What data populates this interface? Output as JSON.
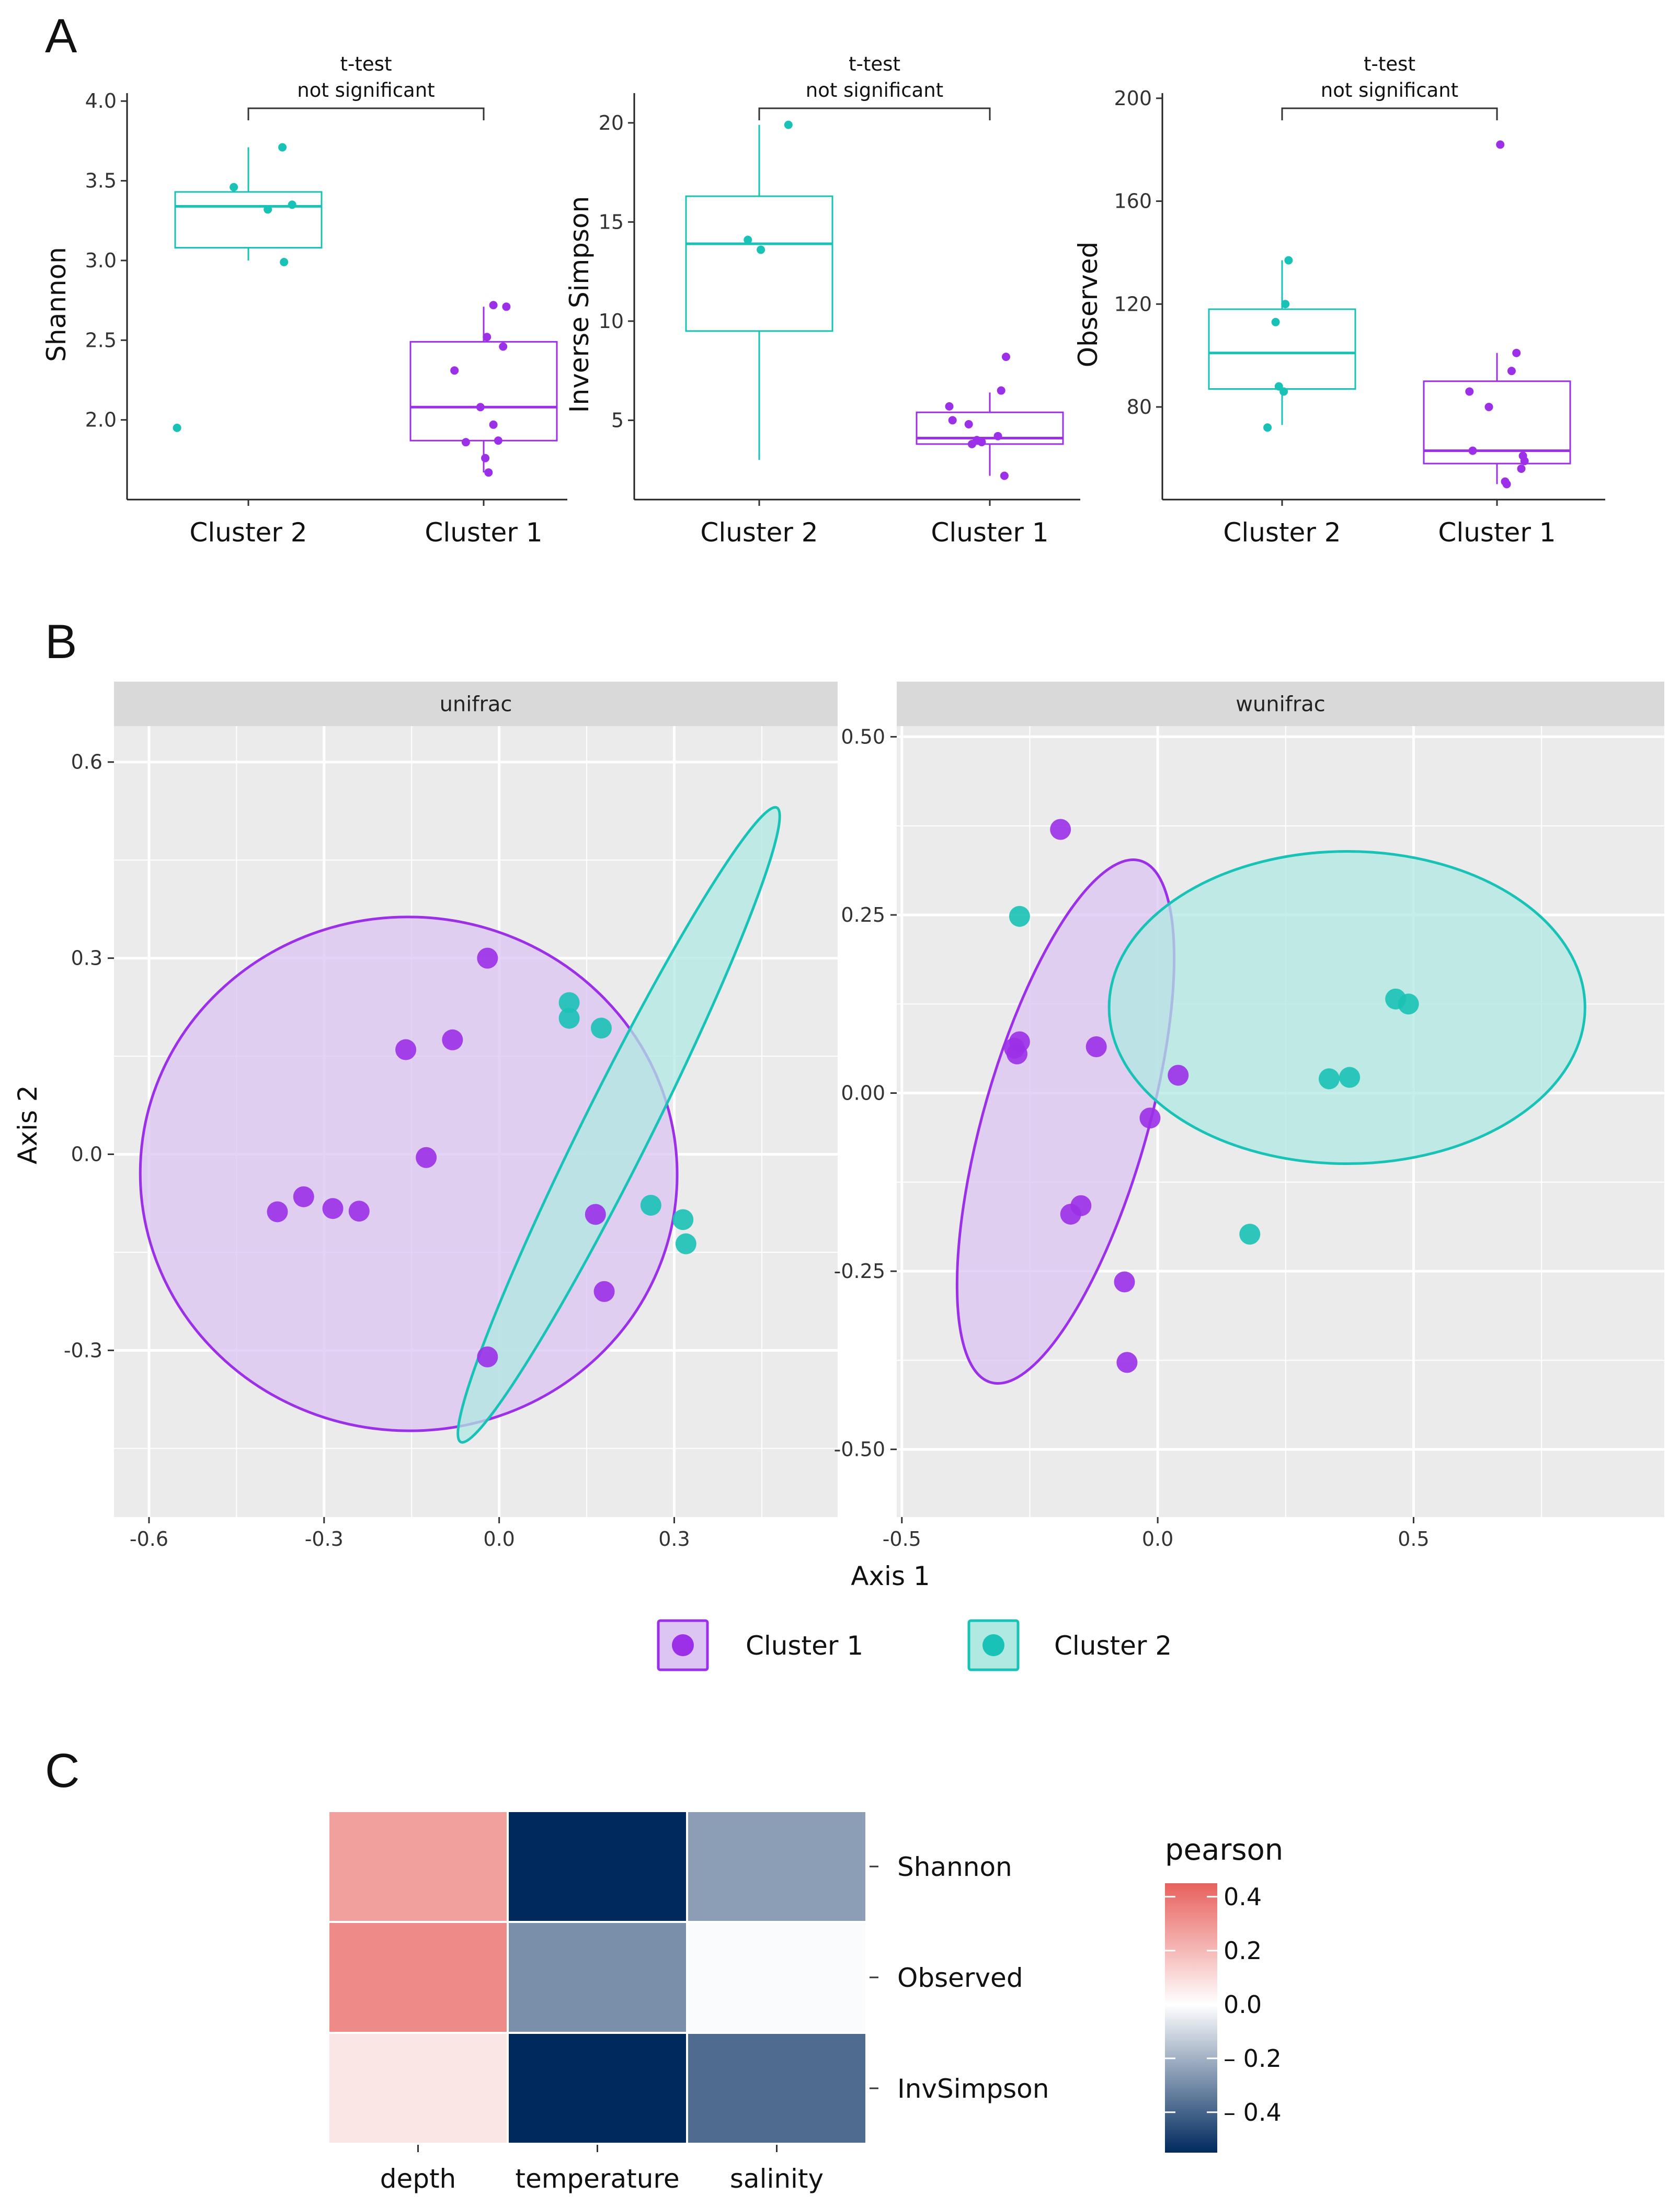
{
  "panels": {
    "a": "A",
    "b": "B",
    "c": "C"
  },
  "colors": {
    "cluster1": "#9b30e8",
    "cluster2": "#19c2b6",
    "cluster1_fill": "#dcc4f3",
    "cluster2_fill": "#b0e8e2",
    "overlap_point": "#5f74d6",
    "panel_bg": "#ebebeb",
    "strip_bg": "#d9d9d9",
    "grid": "#ffffff",
    "heat_low": "#002a5e",
    "heat_mid": "#ffffff",
    "heat_high": "#e8615d"
  },
  "chart_data": [
    {
      "id": "shannon",
      "type": "box",
      "ylabel": "Shannon",
      "categories": [
        "Cluster 2",
        "Cluster 1"
      ],
      "ylim": [
        1.5,
        4.05
      ],
      "yticks": [
        2.0,
        2.5,
        3.0,
        3.5,
        4.0
      ],
      "ytick_labels": [
        "2.0",
        "2.5",
        "3.0",
        "3.5",
        "4.0"
      ],
      "significance": {
        "test": "t-test",
        "result": "not significant"
      },
      "boxes": [
        {
          "category": "Cluster 2",
          "color": "cluster2",
          "q1": 3.08,
          "median": 3.34,
          "q3": 3.43,
          "wmin": 3.0,
          "wmax": 3.71
        },
        {
          "category": "Cluster 1",
          "color": "cluster1",
          "q1": 1.87,
          "median": 2.08,
          "q3": 2.49,
          "wmin": 1.67,
          "wmax": 2.71
        }
      ],
      "points": [
        {
          "category": "Cluster 2",
          "jitter": -0.09,
          "y": 3.46
        },
        {
          "category": "Cluster 2",
          "jitter": 0.21,
          "y": 3.71
        },
        {
          "category": "Cluster 2",
          "jitter": 0.12,
          "y": 3.32
        },
        {
          "category": "Cluster 2",
          "jitter": 0.27,
          "y": 3.35
        },
        {
          "category": "Cluster 2",
          "jitter": 0.22,
          "y": 2.99
        },
        {
          "category": "Cluster 2",
          "jitter": -0.44,
          "y": 1.95
        },
        {
          "category": "Cluster 1",
          "jitter": -0.18,
          "y": 2.31
        },
        {
          "category": "Cluster 1",
          "jitter": -0.11,
          "y": 1.86
        },
        {
          "category": "Cluster 1",
          "jitter": 0.01,
          "y": 1.76
        },
        {
          "category": "Cluster 1",
          "jitter": 0.03,
          "y": 1.67
        },
        {
          "category": "Cluster 1",
          "jitter": -0.02,
          "y": 2.08
        },
        {
          "category": "Cluster 1",
          "jitter": 0.02,
          "y": 2.52
        },
        {
          "category": "Cluster 1",
          "jitter": 0.06,
          "y": 2.72
        },
        {
          "category": "Cluster 1",
          "jitter": 0.14,
          "y": 2.71
        },
        {
          "category": "Cluster 1",
          "jitter": 0.12,
          "y": 2.46
        },
        {
          "category": "Cluster 1",
          "jitter": 0.06,
          "y": 1.97
        },
        {
          "category": "Cluster 1",
          "jitter": 0.09,
          "y": 1.87
        }
      ]
    },
    {
      "id": "invsimpson",
      "type": "box",
      "ylabel": "Inverse Simpson",
      "categories": [
        "Cluster 2",
        "Cluster 1"
      ],
      "ylim": [
        1.0,
        21.5
      ],
      "yticks": [
        5,
        10,
        15,
        20
      ],
      "ytick_labels": [
        "5",
        "10",
        "15",
        "20"
      ],
      "significance": {
        "test": "t-test",
        "result": "not significant"
      },
      "boxes": [
        {
          "category": "Cluster 2",
          "color": "cluster2",
          "q1": 9.5,
          "median": 13.9,
          "q3": 16.3,
          "wmin": 3.0,
          "wmax": 19.9
        },
        {
          "category": "Cluster 1",
          "color": "cluster1",
          "q1": 3.8,
          "median": 4.1,
          "q3": 5.4,
          "wmin": 2.2,
          "wmax": 6.4
        }
      ],
      "points": [
        {
          "category": "Cluster 2",
          "jitter": -0.07,
          "y": 14.1
        },
        {
          "category": "Cluster 2",
          "jitter": 0.01,
          "y": 13.6
        },
        {
          "category": "Cluster 2",
          "jitter": 0.18,
          "y": 19.9
        },
        {
          "category": "Cluster 1",
          "jitter": -0.25,
          "y": 5.7
        },
        {
          "category": "Cluster 1",
          "jitter": -0.23,
          "y": 5.0
        },
        {
          "category": "Cluster 1",
          "jitter": -0.13,
          "y": 4.8
        },
        {
          "category": "Cluster 1",
          "jitter": -0.11,
          "y": 3.8
        },
        {
          "category": "Cluster 1",
          "jitter": -0.08,
          "y": 4.0
        },
        {
          "category": "Cluster 1",
          "jitter": -0.05,
          "y": 3.9
        },
        {
          "category": "Cluster 1",
          "jitter": 0.05,
          "y": 4.2
        },
        {
          "category": "Cluster 1",
          "jitter": 0.07,
          "y": 6.5
        },
        {
          "category": "Cluster 1",
          "jitter": 0.09,
          "y": 2.2
        },
        {
          "category": "Cluster 1",
          "jitter": 0.1,
          "y": 8.2
        }
      ]
    },
    {
      "id": "observed",
      "type": "box",
      "ylabel": "Observed",
      "categories": [
        "Cluster 2",
        "Cluster 1"
      ],
      "ylim": [
        44,
        202
      ],
      "yticks": [
        80,
        120,
        160,
        200
      ],
      "ytick_labels": [
        "80",
        "120",
        "160",
        "200"
      ],
      "significance": {
        "test": "t-test",
        "result": "not significant"
      },
      "boxes": [
        {
          "category": "Cluster 2",
          "color": "cluster2",
          "q1": 87,
          "median": 101,
          "q3": 118,
          "wmin": 73,
          "wmax": 137
        },
        {
          "category": "Cluster 1",
          "color": "cluster1",
          "q1": 58,
          "median": 63,
          "q3": 90,
          "wmin": 50,
          "wmax": 101
        }
      ],
      "points": [
        {
          "category": "Cluster 2",
          "jitter": -0.09,
          "y": 72
        },
        {
          "category": "Cluster 2",
          "jitter": -0.04,
          "y": 113
        },
        {
          "category": "Cluster 2",
          "jitter": -0.02,
          "y": 88
        },
        {
          "category": "Cluster 2",
          "jitter": 0.01,
          "y": 86
        },
        {
          "category": "Cluster 2",
          "jitter": 0.02,
          "y": 120
        },
        {
          "category": "Cluster 2",
          "jitter": 0.04,
          "y": 137
        },
        {
          "category": "Cluster 1",
          "jitter": -0.17,
          "y": 86
        },
        {
          "category": "Cluster 1",
          "jitter": -0.15,
          "y": 63
        },
        {
          "category": "Cluster 1",
          "jitter": -0.05,
          "y": 80
        },
        {
          "category": "Cluster 1",
          "jitter": 0.02,
          "y": 182
        },
        {
          "category": "Cluster 1",
          "jitter": 0.06,
          "y": 50
        },
        {
          "category": "Cluster 1",
          "jitter": 0.05,
          "y": 51
        },
        {
          "category": "Cluster 1",
          "jitter": 0.09,
          "y": 94
        },
        {
          "category": "Cluster 1",
          "jitter": 0.12,
          "y": 101
        },
        {
          "category": "Cluster 1",
          "jitter": 0.15,
          "y": 56
        },
        {
          "category": "Cluster 1",
          "jitter": 0.16,
          "y": 61
        },
        {
          "category": "Cluster 1",
          "jitter": 0.17,
          "y": 59
        }
      ]
    },
    {
      "id": "unifrac",
      "type": "scatter",
      "facet": "unifrac",
      "xlim": [
        -0.66,
        0.58
      ],
      "ylim": [
        -0.555,
        0.655
      ],
      "xticks": [
        -0.6,
        -0.3,
        0.0,
        0.3
      ],
      "xtick_labels": [
        "-0.6",
        "-0.3",
        "0.0",
        "0.3"
      ],
      "yticks": [
        -0.3,
        0.0,
        0.3,
        0.6
      ],
      "ytick_labels": [
        "-0.3",
        "0.0",
        "0.3",
        "0.6"
      ],
      "ellipses": [
        {
          "group": "Cluster 1",
          "cx": -0.155,
          "cy": -0.03,
          "rx": 0.46,
          "ry": 0.44,
          "rot_deg": 2
        },
        {
          "group": "Cluster 2",
          "cx": 0.205,
          "cy": 0.045,
          "rx": 0.607,
          "ry": 0.058,
          "rot_deg": -63.5
        }
      ],
      "points": [
        {
          "group": "Cluster 1",
          "x": -0.02,
          "y": 0.3
        },
        {
          "group": "Cluster 1",
          "x": -0.16,
          "y": 0.16
        },
        {
          "group": "Cluster 1",
          "x": -0.08,
          "y": 0.175
        },
        {
          "group": "Cluster 1",
          "x": -0.125,
          "y": -0.005
        },
        {
          "group": "Cluster 1",
          "x": -0.38,
          "y": -0.088
        },
        {
          "group": "Cluster 1",
          "x": -0.335,
          "y": -0.065
        },
        {
          "group": "Cluster 1",
          "x": -0.285,
          "y": -0.083
        },
        {
          "group": "Cluster 1",
          "x": -0.24,
          "y": -0.087
        },
        {
          "group": "Cluster 1",
          "x": 0.165,
          "y": -0.092
        },
        {
          "group": "Cluster 1",
          "x": 0.18,
          "y": -0.21
        },
        {
          "group": "Cluster 1",
          "x": -0.02,
          "y": -0.31
        },
        {
          "group": "Cluster 2",
          "x": 0.12,
          "y": 0.232
        },
        {
          "group": "Cluster 2",
          "x": 0.12,
          "y": 0.208
        },
        {
          "group": "Cluster 2",
          "x": 0.175,
          "y": 0.193
        },
        {
          "group": "Cluster 2",
          "x": 0.26,
          "y": -0.078
        },
        {
          "group": "Cluster 2",
          "x": 0.315,
          "y": -0.1
        },
        {
          "group": "Cluster 2",
          "x": 0.32,
          "y": -0.137
        }
      ]
    },
    {
      "id": "wunifrac",
      "type": "scatter",
      "facet": "wunifrac",
      "xlim": [
        -0.51,
        0.99
      ],
      "ylim": [
        -0.595,
        0.515
      ],
      "xticks": [
        -0.5,
        0.0,
        0.5
      ],
      "xtick_labels": [
        "-0.5",
        "0.0",
        "0.5"
      ],
      "yticks": [
        -0.5,
        -0.25,
        0.0,
        0.25,
        0.5
      ],
      "ytick_labels": [
        "-0.50",
        "-0.25",
        "0.00",
        "0.25",
        "0.50"
      ],
      "ellipses": [
        {
          "group": "Cluster 1",
          "cx": -0.18,
          "cy": -0.04,
          "rx": 0.53,
          "ry": 0.16,
          "rot_deg": -74
        },
        {
          "group": "Cluster 2",
          "cx": 0.37,
          "cy": 0.12,
          "rx": 0.465,
          "ry": 0.305,
          "rot_deg": 0
        }
      ],
      "points": [
        {
          "group": "Cluster 1",
          "x": -0.19,
          "y": 0.37
        },
        {
          "group": "Cluster 1",
          "x": -0.28,
          "y": 0.063
        },
        {
          "group": "Cluster 1",
          "x": -0.27,
          "y": 0.072
        },
        {
          "group": "Cluster 1",
          "x": -0.275,
          "y": 0.055
        },
        {
          "group": "Cluster 1",
          "x": -0.12,
          "y": 0.065
        },
        {
          "group": "Cluster 1",
          "x": 0.04,
          "y": 0.025
        },
        {
          "group": "Cluster 1",
          "x": -0.015,
          "y": -0.035
        },
        {
          "group": "Cluster 1",
          "x": -0.17,
          "y": -0.17
        },
        {
          "group": "Cluster 1",
          "x": -0.15,
          "y": -0.158
        },
        {
          "group": "Cluster 1",
          "x": -0.065,
          "y": -0.265
        },
        {
          "group": "Cluster 1",
          "x": -0.06,
          "y": -0.378
        },
        {
          "group": "Cluster 2",
          "x": -0.27,
          "y": 0.248
        },
        {
          "group": "Cluster 2",
          "x": 0.335,
          "y": 0.02
        },
        {
          "group": "Cluster 2",
          "x": 0.375,
          "y": 0.022
        },
        {
          "group": "Cluster 2",
          "x": 0.465,
          "y": 0.132
        },
        {
          "group": "Cluster 2",
          "x": 0.49,
          "y": 0.125
        },
        {
          "group": "Cluster 2",
          "x": 0.18,
          "y": -0.198
        }
      ]
    },
    {
      "id": "heatmap",
      "type": "heatmap",
      "columns": [
        "depth",
        "temperature",
        "salinity"
      ],
      "rows": [
        "Shannon",
        "Observed",
        "InvSimpson"
      ],
      "values": [
        [
          0.27,
          -0.55,
          -0.25
        ],
        [
          0.33,
          -0.29,
          -0.01
        ],
        [
          0.07,
          -0.55,
          -0.38
        ]
      ],
      "colorbar": {
        "title": "pearson",
        "range": [
          -0.55,
          0.45
        ],
        "ticks": [
          0.4,
          0.2,
          0.0,
          -0.2,
          -0.4
        ],
        "tick_labels": [
          "0.4",
          "0.2",
          "0.0",
          "– 0.2",
          "– 0.4"
        ]
      }
    }
  ],
  "ordination": {
    "xlabel": "Axis 1",
    "ylabel": "Axis 2"
  },
  "legend": {
    "items": [
      {
        "label": "Cluster 1"
      },
      {
        "label": "Cluster 2"
      }
    ]
  }
}
